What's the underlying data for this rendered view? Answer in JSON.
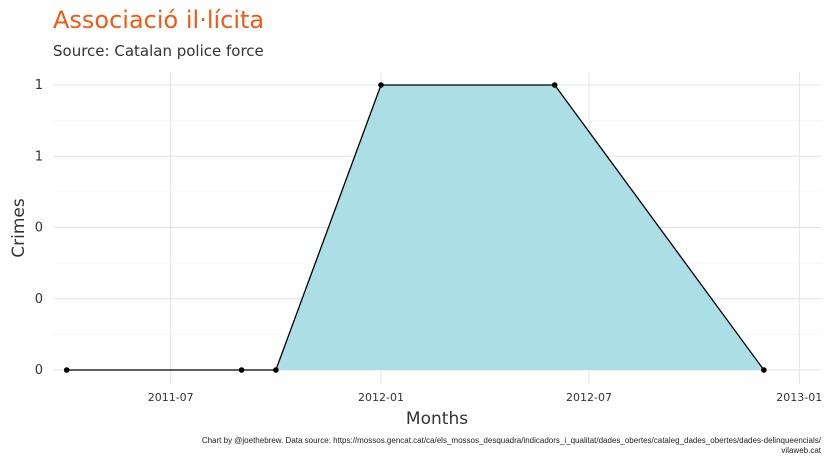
{
  "chart_data": {
    "type": "area",
    "title": "Associació il·lícita",
    "subtitle": "Source: Catalan police force",
    "xlabel": "Months",
    "ylabel": "Crimes",
    "x": [
      "2011-04",
      "2011-09",
      "2011-10",
      "2012-01",
      "2012-06",
      "2012-12"
    ],
    "values": [
      0,
      0,
      0,
      1,
      1,
      0
    ],
    "x_ticks": [
      "2011-07",
      "2012-01",
      "2012-07",
      "2013-01"
    ],
    "y_ticks": [
      "0",
      "0",
      "0",
      "1",
      "1"
    ],
    "ylim": [
      0,
      1
    ],
    "xlim": [
      "2011-03-20",
      "2013-01-20"
    ],
    "grid": true,
    "fill_color": "#abdfe5",
    "line_color": "#000000",
    "title_color": "#f05a12"
  },
  "caption": {
    "line1": "Chart by @joethebrew. Data source: https://mossos.gencat.cat/ca/els_mossos_desquadra/indicadors_i_qualitat/dades_obertes/cataleg_dades_obertes/dades-delinqueencials/",
    "line2": "vilaweb.cat"
  }
}
